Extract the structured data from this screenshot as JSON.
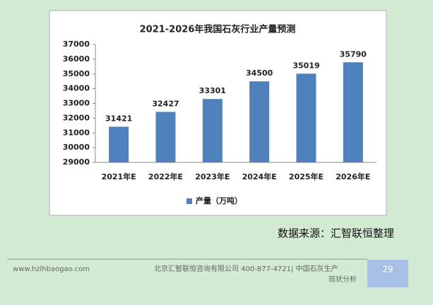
{
  "chart_data": {
    "type": "bar",
    "title": "2021-2026年我国石灰行业产量预测",
    "categories": [
      "2021年E",
      "2022年E",
      "2023年E",
      "2024年E",
      "2025年E",
      "2026年E"
    ],
    "series": [
      {
        "name": "产量（万吨）",
        "color": "#4f81bd",
        "values": [
          31421,
          32427,
          33301,
          34500,
          35019,
          35790
        ]
      }
    ],
    "ylim": [
      29000,
      37000
    ],
    "yticks": [
      29000,
      30000,
      31000,
      32000,
      33000,
      34000,
      35000,
      36000,
      37000
    ],
    "grid": false,
    "legend": "bottom"
  },
  "source": "数据来源：汇智联恒整理",
  "footer": {
    "website": "www.hzlhbaogao.com",
    "company": "北京汇智联恒咨询有限公司  400-877-4721| 中国石灰生产",
    "company_cont": "现状分析",
    "page": "29"
  }
}
